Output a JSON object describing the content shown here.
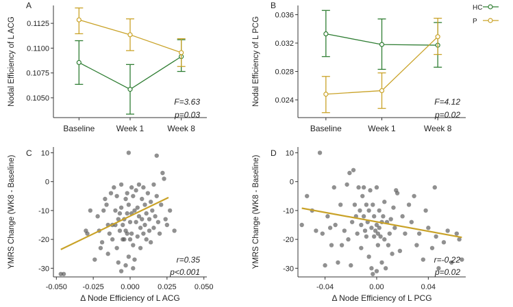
{
  "legend": {
    "entries": [
      {
        "label": "HC",
        "color": "#2e7d32"
      },
      {
        "label": "P",
        "color": "#c9a227"
      }
    ]
  },
  "colors": {
    "hc": "#2e7d32",
    "p": "#c9a227",
    "point": "#555555",
    "axis": "#333333"
  },
  "chart_data": [
    {
      "panel": "A",
      "type": "line",
      "categories": [
        "Baseline",
        "Week 1",
        "Week 8"
      ],
      "ylabel": "Nodal Efficiency of L ACG",
      "xlabel": "",
      "ylim": [
        0.103,
        0.1143
      ],
      "yticks": [
        0.105,
        0.1075,
        0.11,
        0.1125
      ],
      "ytick_labels": [
        "0.1050",
        "0.1075",
        "0.1100",
        "0.1125"
      ],
      "series": [
        {
          "name": "HC",
          "values": [
            0.10855,
            0.10585,
            0.10915
          ],
          "err_low": [
            0.10635,
            0.10335,
            0.10765
          ],
          "err_high": [
            0.11075,
            0.10835,
            0.11085
          ]
        },
        {
          "name": "P",
          "values": [
            0.11285,
            0.11135,
            0.10955
          ],
          "err_low": [
            0.11145,
            0.10975,
            0.10815
          ],
          "err_high": [
            0.11405,
            0.11295,
            0.11095
          ]
        }
      ],
      "stat": [
        "F=3.63",
        "p=0.03"
      ]
    },
    {
      "panel": "B",
      "type": "line",
      "categories": [
        "Baseline",
        "Week 1",
        "Week 8"
      ],
      "ylabel": "Nodal Efficiency of L PCG",
      "xlabel": "",
      "ylim": [
        0.0215,
        0.0373
      ],
      "yticks": [
        0.024,
        0.028,
        0.032,
        0.036
      ],
      "ytick_labels": [
        "0.024",
        "0.028",
        "0.032",
        "0.036"
      ],
      "series": [
        {
          "name": "HC",
          "values": [
            0.0333,
            0.0318,
            0.0317
          ],
          "err_low": [
            0.0301,
            0.0283,
            0.0286
          ],
          "err_high": [
            0.0366,
            0.0354,
            0.0349
          ]
        },
        {
          "name": "P",
          "values": [
            0.0248,
            0.0253,
            0.0329
          ],
          "err_low": [
            0.0222,
            0.0228,
            0.0304
          ],
          "err_high": [
            0.0273,
            0.0278,
            0.0355
          ]
        }
      ],
      "stat": [
        "F=4.12",
        "p=0.02"
      ]
    },
    {
      "panel": "C",
      "type": "scatter",
      "xlabel": "Δ Node Efficiency of L ACG",
      "ylabel": "YMRS Change (WK8 - Baseline)",
      "xlim": [
        -0.052,
        0.052
      ],
      "ylim": [
        -33,
        12
      ],
      "xticks": [
        -0.05,
        -0.025,
        0,
        0.025,
        0.05
      ],
      "xtick_labels": [
        "-0.050",
        "-0.025",
        "0.000",
        "0.025",
        "0.050"
      ],
      "yticks": [
        -30,
        -20,
        -10,
        0,
        10
      ],
      "ytick_labels": [
        "-30",
        "-20",
        "-10",
        "0",
        "10"
      ],
      "fit": {
        "x": [
          -0.047,
          0.026
        ],
        "y": [
          -23.5,
          -5.5
        ]
      },
      "points": [
        [
          -0.047,
          -32
        ],
        [
          -0.045,
          -32
        ],
        [
          -0.03,
          -17
        ],
        [
          -0.029,
          -18
        ],
        [
          -0.027,
          -10
        ],
        [
          -0.024,
          -27
        ],
        [
          -0.022,
          -12
        ],
        [
          -0.021,
          -17
        ],
        [
          -0.02,
          -23
        ],
        [
          -0.018,
          -10
        ],
        [
          -0.017,
          -6
        ],
        [
          -0.016,
          -8
        ],
        [
          -0.015,
          -15
        ],
        [
          -0.015,
          -25
        ],
        [
          -0.014,
          -18
        ],
        [
          -0.013,
          -4
        ],
        [
          -0.012,
          -15
        ],
        [
          -0.012,
          -20
        ],
        [
          -0.011,
          -2
        ],
        [
          -0.01,
          -10
        ],
        [
          -0.01,
          -15
        ],
        [
          -0.009,
          -5
        ],
        [
          -0.009,
          -23
        ],
        [
          -0.008,
          -13
        ],
        [
          -0.008,
          -28
        ],
        [
          -0.007,
          -11
        ],
        [
          -0.007,
          -17
        ],
        [
          -0.006,
          -1
        ],
        [
          -0.006,
          -9
        ],
        [
          -0.005,
          -20
        ],
        [
          -0.005,
          -15
        ],
        [
          -0.004,
          -13
        ],
        [
          -0.004,
          -20
        ],
        [
          -0.003,
          -6
        ],
        [
          -0.003,
          -17
        ],
        [
          -0.002,
          -4
        ],
        [
          -0.002,
          -11
        ],
        [
          -0.002,
          -18
        ],
        [
          -0.001,
          -26
        ],
        [
          -0.001,
          -8
        ],
        [
          0.0,
          -14
        ],
        [
          0.0,
          -20
        ],
        [
          0.001,
          -2
        ],
        [
          0.001,
          -11
        ],
        [
          0.001,
          -18
        ],
        [
          0.002,
          -5
        ],
        [
          0.002,
          -22
        ],
        [
          0.003,
          -10
        ],
        [
          0.003,
          -27
        ],
        [
          0.004,
          -14
        ],
        [
          0.004,
          -3
        ],
        [
          0.005,
          -19
        ],
        [
          0.005,
          -9
        ],
        [
          0.006,
          -1
        ],
        [
          0.006,
          -12
        ],
        [
          0.007,
          -16
        ],
        [
          0.007,
          -23
        ],
        [
          0.008,
          -6
        ],
        [
          0.008,
          -13
        ],
        [
          0.009,
          -18
        ],
        [
          0.009,
          -2
        ],
        [
          0.01,
          -8
        ],
        [
          0.01,
          -15
        ],
        [
          0.011,
          -11
        ],
        [
          0.011,
          -20
        ],
        [
          0.012,
          -4
        ],
        [
          0.013,
          -13
        ],
        [
          0.013,
          -17
        ],
        [
          0.014,
          -7
        ],
        [
          0.014,
          -21
        ],
        [
          0.015,
          -10
        ],
        [
          0.016,
          -1
        ],
        [
          0.016,
          -16
        ],
        [
          0.017,
          -12
        ],
        [
          0.018,
          9
        ],
        [
          0.018,
          -5
        ],
        [
          0.019,
          -14
        ],
        [
          0.02,
          -18
        ],
        [
          0.021,
          -8
        ],
        [
          0.022,
          3
        ],
        [
          0.023,
          1
        ],
        [
          0.024,
          -13
        ],
        [
          0.025,
          -15
        ],
        [
          0.027,
          -10
        ],
        [
          0.03,
          -17
        ],
        [
          -0.001,
          10
        ],
        [
          -0.003,
          -29
        ],
        [
          -0.006,
          -31
        ],
        [
          0.002,
          -30
        ],
        [
          -0.019,
          -21
        ]
      ],
      "stat": [
        "r=0.35",
        "p<0.001"
      ]
    },
    {
      "panel": "D",
      "type": "scatter",
      "xlabel": "Δ Node Efficiency of L PCG",
      "ylabel": "YMRS Change (WK8 - Baseline)",
      "xlim": [
        -0.061,
        0.069
      ],
      "ylim": [
        -33,
        12
      ],
      "xticks": [
        -0.04,
        0,
        0.04
      ],
      "xtick_labels": [
        "-0.04",
        "0.00",
        "0.04"
      ],
      "yticks": [
        -30,
        -20,
        -10,
        0,
        10
      ],
      "ytick_labels": [
        "-30",
        "-20",
        "-10",
        "0",
        "10"
      ],
      "fit": {
        "x": [
          -0.058,
          0.066
        ],
        "y": [
          -9.2,
          -19.3
        ]
      },
      "points": [
        [
          -0.058,
          -15
        ],
        [
          -0.054,
          -5
        ],
        [
          -0.05,
          -10
        ],
        [
          -0.047,
          -17
        ],
        [
          -0.044,
          10
        ],
        [
          -0.042,
          -18
        ],
        [
          -0.04,
          -29
        ],
        [
          -0.038,
          -12
        ],
        [
          -0.036,
          -16
        ],
        [
          -0.035,
          -22
        ],
        [
          -0.033,
          -2
        ],
        [
          -0.032,
          -15
        ],
        [
          -0.03,
          -28
        ],
        [
          -0.028,
          -8
        ],
        [
          -0.027,
          -22
        ],
        [
          -0.025,
          -17
        ],
        [
          -0.023,
          -1
        ],
        [
          -0.022,
          -20
        ],
        [
          -0.021,
          3
        ],
        [
          -0.02,
          -29
        ],
        [
          -0.019,
          -14
        ],
        [
          -0.018,
          4
        ],
        [
          -0.017,
          -8
        ],
        [
          -0.016,
          -12
        ],
        [
          -0.015,
          -18
        ],
        [
          -0.014,
          -2
        ],
        [
          -0.013,
          -10
        ],
        [
          -0.012,
          -15
        ],
        [
          -0.012,
          -23
        ],
        [
          -0.011,
          -5
        ],
        [
          -0.01,
          -2
        ],
        [
          -0.01,
          -12
        ],
        [
          -0.009,
          -17
        ],
        [
          -0.008,
          -8
        ],
        [
          -0.008,
          -19
        ],
        [
          -0.007,
          -14
        ],
        [
          -0.006,
          -10
        ],
        [
          -0.006,
          -26
        ],
        [
          -0.005,
          -3
        ],
        [
          -0.004,
          -16
        ],
        [
          -0.004,
          -30
        ],
        [
          -0.003,
          -8
        ],
        [
          -0.002,
          -19
        ],
        [
          -0.002,
          -12
        ],
        [
          -0.001,
          -17
        ],
        [
          0.0,
          -15
        ],
        [
          0.0,
          -2
        ],
        [
          0.001,
          -18
        ],
        [
          0.001,
          -22
        ],
        [
          0.002,
          -10
        ],
        [
          0.002,
          -16
        ],
        [
          0.003,
          -19
        ],
        [
          0.004,
          -14
        ],
        [
          0.004,
          -28
        ],
        [
          0.005,
          -12
        ],
        [
          0.006,
          -7
        ],
        [
          0.006,
          -20
        ],
        [
          0.007,
          -30
        ],
        [
          0.008,
          -14
        ],
        [
          0.009,
          -22
        ],
        [
          0.01,
          -18
        ],
        [
          0.011,
          -13
        ],
        [
          0.012,
          -25
        ],
        [
          0.013,
          -9
        ],
        [
          0.014,
          -16
        ],
        [
          0.016,
          -4
        ],
        [
          0.018,
          -24
        ],
        [
          0.02,
          -12
        ],
        [
          0.022,
          -18
        ],
        [
          0.025,
          -8
        ],
        [
          0.027,
          -14
        ],
        [
          0.029,
          -5
        ],
        [
          0.031,
          -22
        ],
        [
          0.033,
          -18
        ],
        [
          0.036,
          -27
        ],
        [
          0.038,
          -10
        ],
        [
          0.04,
          -16
        ],
        [
          0.043,
          -23
        ],
        [
          0.046,
          -19
        ],
        [
          0.048,
          -30
        ],
        [
          0.052,
          -21
        ],
        [
          0.055,
          -17
        ],
        [
          0.058,
          -28
        ],
        [
          0.062,
          -18
        ],
        [
          0.064,
          -20
        ],
        [
          0.066,
          -27
        ],
        [
          0.015,
          -3
        ],
        [
          -0.003,
          -32
        ],
        [
          0.0,
          -31
        ],
        [
          0.045,
          -2
        ]
      ],
      "stat": [
        "r=-0.22",
        "p=0.02"
      ]
    }
  ]
}
